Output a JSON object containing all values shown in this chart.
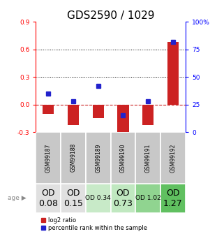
{
  "title": "GDS2590 / 1029",
  "samples": [
    "GSM99187",
    "GSM99188",
    "GSM99189",
    "GSM99190",
    "GSM99191",
    "GSM99192"
  ],
  "log2_ratio": [
    -0.1,
    -0.22,
    -0.15,
    -0.38,
    -0.22,
    0.68
  ],
  "percentile_rank": [
    35,
    28,
    42,
    15,
    28,
    82
  ],
  "ylim_left": [
    -0.3,
    0.9
  ],
  "ylim_right": [
    0,
    100
  ],
  "left_ticks": [
    -0.3,
    0.0,
    0.3,
    0.6,
    0.9
  ],
  "right_ticks": [
    0,
    25,
    50,
    75,
    100
  ],
  "age_labels": [
    "OD\n0.08",
    "OD\n0.15",
    "OD 0.34",
    "OD\n0.73",
    "OD 1.02",
    "OD\n1.27"
  ],
  "age_colors": [
    "#e0e0e0",
    "#e0e0e0",
    "#c8eac8",
    "#c0e8c0",
    "#90d490",
    "#60c060"
  ],
  "age_font_sizes": [
    9,
    9,
    6.5,
    9,
    6.5,
    9
  ],
  "bar_color_red": "#cc2222",
  "bar_color_blue": "#2222cc",
  "bar_width": 0.45,
  "legend_red": "log2 ratio",
  "legend_blue": "percentile rank within the sample",
  "sample_box_color": "#c8c8c8",
  "title_fontsize": 11
}
